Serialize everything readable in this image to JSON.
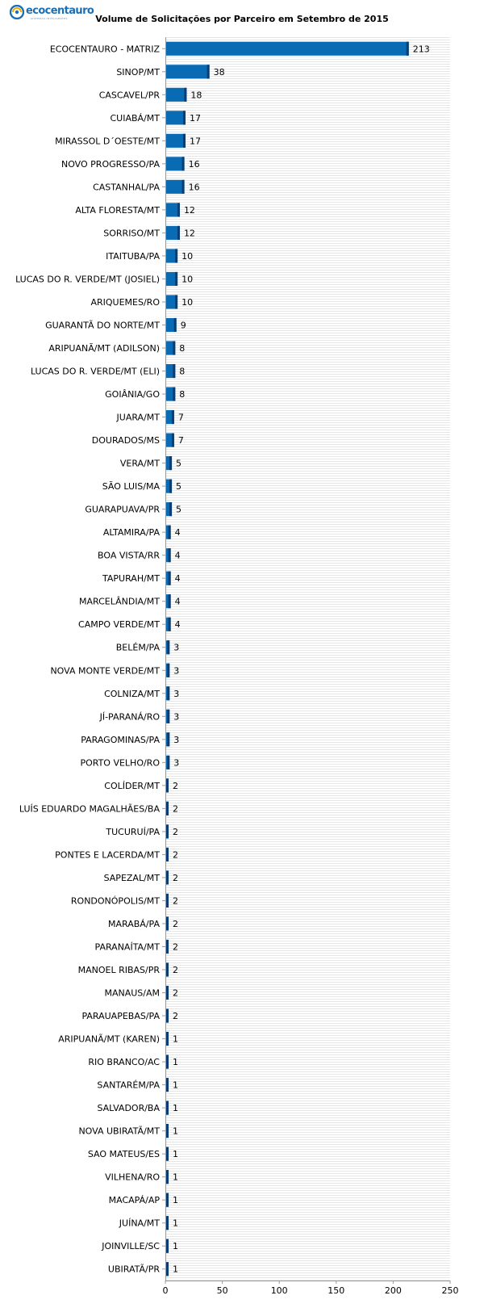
{
  "logo": {
    "name": "ecocentauro",
    "tagline": "SISTEMAS INTELIGENTES"
  },
  "colors": {
    "bar_fill": "#0a6bb5",
    "bar_edge": "#0a3d73",
    "grid_stripe": "#e6e6e6",
    "axis": "#999999"
  },
  "chart_data": {
    "type": "bar",
    "orientation": "horizontal",
    "title": "Volume de Solicitações por Parceiro em Setembro de 2015",
    "xlabel": "",
    "ylabel": "",
    "xlim": [
      0,
      250
    ],
    "xticks": [
      0,
      50,
      100,
      150,
      200,
      250
    ],
    "grid": true,
    "data_labels": true,
    "categories": [
      "ECOCENTAURO - MATRIZ",
      "SINOP/MT",
      "CASCAVEL/PR",
      "CUIABÁ/MT",
      "MIRASSOL D´OESTE/MT",
      "NOVO PROGRESSO/PA",
      "CASTANHAL/PA",
      "ALTA FLORESTA/MT",
      "SORRISO/MT",
      "ITAITUBA/PA",
      "LUCAS DO R. VERDE/MT (JOSIEL)",
      "ARIQUEMES/RO",
      "GUARANTÃ DO NORTE/MT",
      "ARIPUANÃ/MT (ADILSON)",
      "LUCAS DO R. VERDE/MT (ELI)",
      "GOIÂNIA/GO",
      "JUARA/MT",
      "DOURADOS/MS",
      "VERA/MT",
      "SÃO LUIS/MA",
      "GUARAPUAVA/PR",
      "ALTAMIRA/PA",
      "BOA VISTA/RR",
      "TAPURAH/MT",
      "MARCELÂNDIA/MT",
      "CAMPO VERDE/MT",
      "BELÉM/PA",
      "NOVA MONTE VERDE/MT",
      "COLNIZA/MT",
      "JÍ-PARANÁ/RO",
      "PARAGOMINAS/PA",
      "PORTO VELHO/RO",
      "COLÍDER/MT",
      "LUÍS EDUARDO MAGALHÃES/BA",
      "TUCURUÍ/PA",
      "PONTES E LACERDA/MT",
      "SAPEZAL/MT",
      "RONDONÓPOLIS/MT",
      "MARABÁ/PA",
      "PARANAÍTA/MT",
      "MANOEL RIBAS/PR",
      "MANAUS/AM",
      "PARAUAPEBAS/PA",
      "ARIPUANÃ/MT (KAREN)",
      "RIO BRANCO/AC",
      "SANTARÉM/PA",
      "SALVADOR/BA",
      "NOVA UBIRATÃ/MT",
      "SAO MATEUS/ES",
      "VILHENA/RO",
      "MACAPÁ/AP",
      "JUÍNA/MT",
      "JOINVILLE/SC",
      "UBIRATÃ/PR"
    ],
    "values": [
      213,
      38,
      18,
      17,
      17,
      16,
      16,
      12,
      12,
      10,
      10,
      10,
      9,
      8,
      8,
      8,
      7,
      7,
      5,
      5,
      5,
      4,
      4,
      4,
      4,
      4,
      3,
      3,
      3,
      3,
      3,
      3,
      2,
      2,
      2,
      2,
      2,
      2,
      2,
      2,
      2,
      2,
      2,
      1,
      1,
      1,
      1,
      1,
      1,
      1,
      1,
      1,
      1,
      1
    ]
  }
}
